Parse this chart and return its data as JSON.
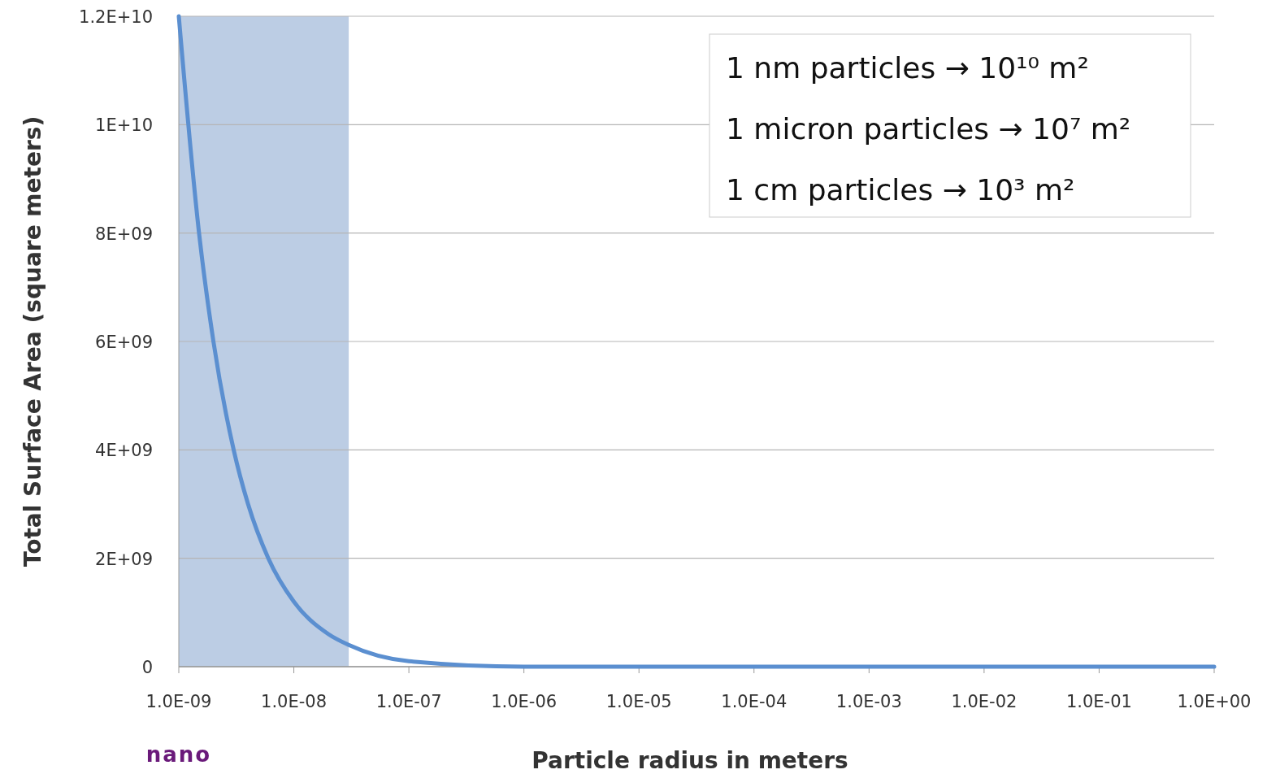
{
  "chart_data": {
    "type": "line",
    "xlabel": "Particle radius in meters",
    "ylabel": "Total Surface Area (square meters)",
    "x": [
      1e-09,
      1.5e-09,
      2e-09,
      3e-09,
      4e-09,
      6e-09,
      1e-08,
      2e-08,
      3e-08,
      1e-07,
      1e-06,
      1e-05,
      0.0001,
      0.001,
      0.01,
      0.1,
      1
    ],
    "series": [
      {
        "color": "#5b8fd0",
        "values": [
          12000000000,
          8000000000,
          6000000000,
          4000000000,
          3000000000,
          2000000000,
          1200000000,
          600000000,
          400000000,
          100000000,
          0,
          0,
          0,
          0,
          0,
          0,
          0
        ]
      }
    ],
    "log": "x",
    "xlim": [
      1e-09,
      1
    ],
    "xticks": [
      {
        "value": 1e-09,
        "label": "1.0E-09"
      },
      {
        "value": 1e-08,
        "label": "1.0E-08"
      },
      {
        "value": 1e-07,
        "label": "1.0E-07"
      },
      {
        "value": 1e-06,
        "label": "1.0E-06"
      },
      {
        "value": 1e-05,
        "label": "1.0E-05"
      },
      {
        "value": 0.0001,
        "label": "1.0E-04"
      },
      {
        "value": 0.001,
        "label": "1.0E-03"
      },
      {
        "value": 0.01,
        "label": "1.0E-02"
      },
      {
        "value": 0.1,
        "label": "1.0E-01"
      },
      {
        "value": 1,
        "label": "1.0E+00"
      }
    ],
    "ylim": [
      0,
      12000000000
    ],
    "yticks": [
      0,
      {
        "value": 2000000000,
        "label": "2E+09"
      },
      {
        "value": 4000000000,
        "label": "4E+09"
      },
      {
        "value": 6000000000,
        "label": "6E+09"
      },
      {
        "value": 8000000000,
        "label": "8E+09"
      },
      {
        "value": 10000000000,
        "label": "1E+10"
      },
      {
        "value": 12000000000,
        "label": "1.2E+10"
      }
    ],
    "grid": "y",
    "marker": "none",
    "line_style": "solid",
    "bands": [
      {
        "axis": "x",
        "from": 1e-09,
        "to": 3e-08,
        "color": "#b0c4df"
      }
    ],
    "annotations": [
      "1 nm particles → 10¹⁰ m²",
      "1 micron particles → 10⁷ m²",
      "1 cm particles → 10³ m²",
      "nano"
    ]
  }
}
